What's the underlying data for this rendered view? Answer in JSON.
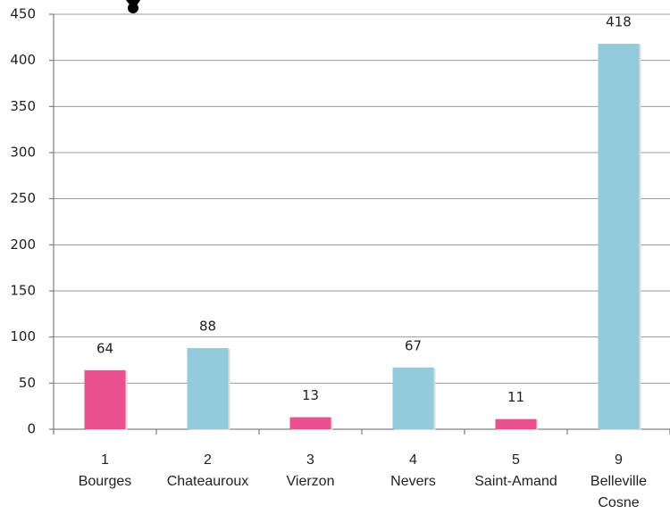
{
  "chart_data": {
    "type": "bar",
    "categories": [
      [
        "1",
        "Bourges"
      ],
      [
        "2",
        "Chateauroux"
      ],
      [
        "3",
        "Vierzon"
      ],
      [
        "4",
        "Nevers"
      ],
      [
        "5",
        "Saint-Amand"
      ],
      [
        "9",
        "Belleville",
        "Cosne"
      ]
    ],
    "values": [
      64,
      88,
      13,
      67,
      11,
      418
    ],
    "colors": [
      "#e8508e",
      "#93cbdc",
      "#e8508e",
      "#93cbdc",
      "#e8508e",
      "#93cbdc"
    ],
    "ylim": [
      0,
      450
    ],
    "yticks": [
      0,
      50,
      100,
      150,
      200,
      250,
      300,
      350,
      400,
      450
    ],
    "grid": true
  }
}
